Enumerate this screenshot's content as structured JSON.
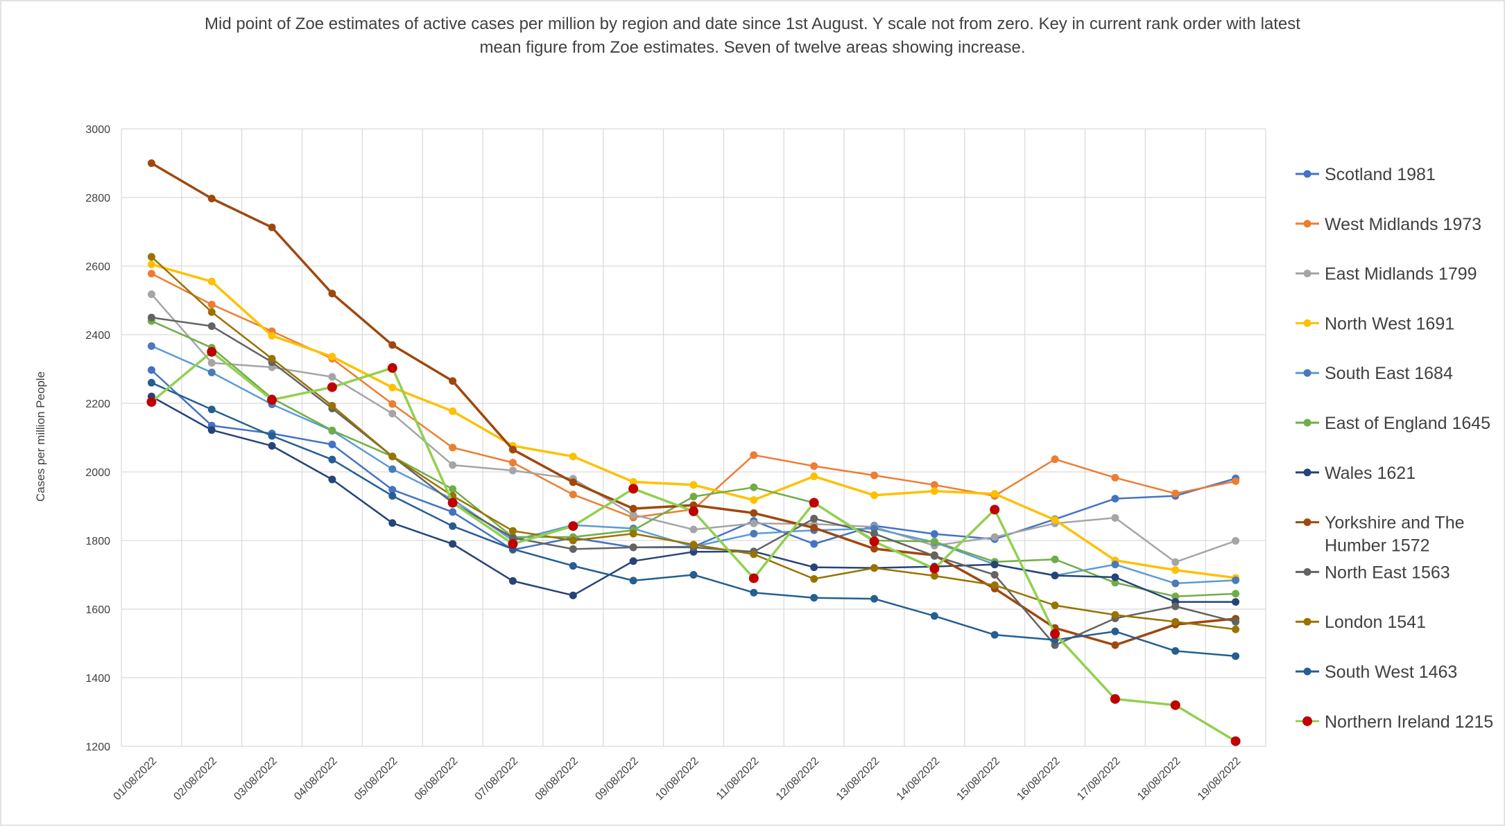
{
  "chart_data": {
    "type": "line",
    "title_line1": "Mid point of Zoe estimates of active cases per million by region and date since 1st August. Y scale not from zero. Key in current rank order with latest",
    "title_line2": "mean figure from Zoe estimates. Seven of twelve areas showing increase.",
    "xlabel": "",
    "ylabel": "Cases per million People",
    "ylim": [
      1200,
      3000
    ],
    "yticks": [
      1200,
      1400,
      1600,
      1800,
      2000,
      2200,
      2400,
      2600,
      2800,
      3000
    ],
    "grid": true,
    "legend_position": "right",
    "categories": [
      "01/08/2022",
      "02/08/2022",
      "03/08/2022",
      "04/08/2022",
      "05/08/2022",
      "06/08/2022",
      "07/08/2022",
      "08/08/2022",
      "09/08/2022",
      "10/08/2022",
      "11/08/2022",
      "12/08/2022",
      "13/08/2022",
      "14/08/2022",
      "15/08/2022",
      "16/08/2022",
      "17/08/2022",
      "18/08/2022",
      "19/08/2022"
    ],
    "series": [
      {
        "name": "Scotland 1981",
        "color": "#4472c4",
        "marker": "#4472c4",
        "values": [
          2297,
          2135,
          2112,
          2080,
          1948,
          1883,
          1773,
          1808,
          1780,
          1782,
          1857,
          1790,
          1843,
          1819,
          1804,
          1862,
          1922,
          1930,
          1981
        ]
      },
      {
        "name": "West Midlands 1973",
        "color": "#ed7d31",
        "marker": "#ed7d31",
        "values": [
          2578,
          2488,
          2410,
          2330,
          2198,
          2071,
          2027,
          1934,
          1867,
          1891,
          2049,
          2017,
          1990,
          1962,
          1930,
          2037,
          1983,
          1937,
          1973
        ]
      },
      {
        "name": "East Midlands 1799",
        "color": "#a5a5a5",
        "marker": "#a5a5a5",
        "values": [
          2518,
          2318,
          2305,
          2277,
          2170,
          2020,
          2004,
          1980,
          1875,
          1832,
          1850,
          1848,
          1840,
          1785,
          1810,
          1850,
          1866,
          1737,
          1799
        ]
      },
      {
        "name": "North West 1691",
        "color": "#ffc000",
        "marker": "#ffc000",
        "values": [
          2605,
          2555,
          2397,
          2336,
          2246,
          2177,
          2076,
          2045,
          1971,
          1962,
          1918,
          1987,
          1932,
          1944,
          1936,
          1860,
          1742,
          1714,
          1691
        ]
      },
      {
        "name": "South East 1684",
        "color": "#5b9bd5",
        "marker": "#4a7ab8",
        "values": [
          2367,
          2290,
          2197,
          2120,
          2008,
          1920,
          1800,
          1845,
          1835,
          1782,
          1820,
          1830,
          1835,
          1795,
          1730,
          1698,
          1730,
          1675,
          1684
        ]
      },
      {
        "name": "East of England 1645",
        "color": "#70ad47",
        "marker": "#70ad47",
        "values": [
          2440,
          2362,
          2215,
          2121,
          2045,
          1950,
          1810,
          1810,
          1830,
          1928,
          1955,
          1910,
          1800,
          1797,
          1738,
          1745,
          1677,
          1637,
          1645
        ]
      },
      {
        "name": "Wales 1621",
        "color": "#264478",
        "marker": "#264478",
        "values": [
          2220,
          2122,
          2076,
          1978,
          1851,
          1790,
          1682,
          1640,
          1740,
          1767,
          1768,
          1722,
          1720,
          1724,
          1730,
          1698,
          1693,
          1621,
          1621
        ]
      },
      {
        "name": "Yorkshire and The Humber 1572",
        "name_line1": "Yorkshire and The",
        "name_line2": "Humber 1572",
        "color": "#9e480e",
        "marker": "#9e480e",
        "values": [
          2900,
          2797,
          2713,
          2520,
          2370,
          2265,
          2065,
          1970,
          1893,
          1903,
          1880,
          1837,
          1776,
          1757,
          1660,
          1545,
          1495,
          1555,
          1572
        ]
      },
      {
        "name": "North East 1563",
        "color": "#636363",
        "marker": "#636363",
        "values": [
          2450,
          2425,
          2320,
          2185,
          2045,
          1910,
          1808,
          1775,
          1780,
          1780,
          1767,
          1864,
          1820,
          1755,
          1700,
          1495,
          1573,
          1608,
          1563
        ]
      },
      {
        "name": "London 1541",
        "color": "#997300",
        "marker": "#997300",
        "values": [
          2627,
          2466,
          2330,
          2193,
          2045,
          1930,
          1828,
          1800,
          1820,
          1788,
          1760,
          1688,
          1720,
          1697,
          1670,
          1611,
          1583,
          1563,
          1541
        ]
      },
      {
        "name": "South West 1463",
        "color": "#255e91",
        "marker": "#255e91",
        "values": [
          2260,
          2182,
          2105,
          2036,
          1930,
          1842,
          1775,
          1726,
          1683,
          1700,
          1648,
          1633,
          1630,
          1580,
          1525,
          1510,
          1535,
          1478,
          1463
        ]
      },
      {
        "name": "Northern Ireland 1215",
        "color": "#92d050",
        "marker": "#c00000",
        "values": [
          2204,
          2350,
          2210,
          2247,
          2303,
          1910,
          1790,
          1842,
          1951,
          1885,
          1690,
          1910,
          1797,
          1718,
          1890,
          1528,
          1338,
          1320,
          1215
        ]
      }
    ]
  }
}
